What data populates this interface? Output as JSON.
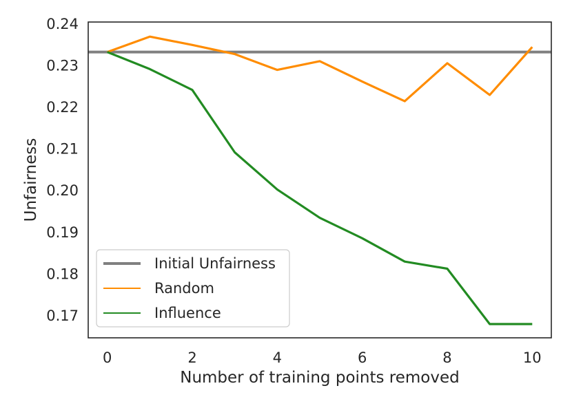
{
  "chart_data": {
    "type": "line",
    "title": "",
    "xlabel": "Number of training points removed",
    "ylabel": "Unfairness",
    "xlim": [
      -0.45,
      10.45
    ],
    "ylim": [
      0.1647,
      0.2405
    ],
    "xticks": [
      0,
      2,
      4,
      6,
      8,
      10
    ],
    "yticks": [
      0.17,
      0.18,
      0.19,
      0.2,
      0.21,
      0.22,
      0.23,
      0.24
    ],
    "ytick_labels": [
      "0.17",
      "0.18",
      "0.19",
      "0.20",
      "0.21",
      "0.22",
      "0.23",
      "0.24"
    ],
    "xtick_labels": [
      "0",
      "2",
      "4",
      "6",
      "8",
      "10"
    ],
    "grid": false,
    "legend_position": "lower-left",
    "hlines": [
      {
        "name": "Initial Unfairness",
        "y": 0.2333,
        "color": "#808080"
      }
    ],
    "series": [
      {
        "name": "Random",
        "color": "#ff8c00",
        "x": [
          0,
          1,
          2,
          3,
          4,
          5,
          6,
          7,
          8,
          9,
          10
        ],
        "values": [
          0.2333,
          0.237,
          0.235,
          0.2328,
          0.229,
          0.2311,
          0.2262,
          0.2215,
          0.2306,
          0.223,
          0.2345
        ]
      },
      {
        "name": "Influence",
        "color": "#228b22",
        "x": [
          0,
          1,
          2,
          3,
          4,
          5,
          6,
          7,
          8,
          9,
          10
        ],
        "values": [
          0.2333,
          0.2292,
          0.2242,
          0.2092,
          0.2003,
          0.1935,
          0.1886,
          0.183,
          0.1813,
          0.168,
          0.168
        ]
      }
    ]
  }
}
